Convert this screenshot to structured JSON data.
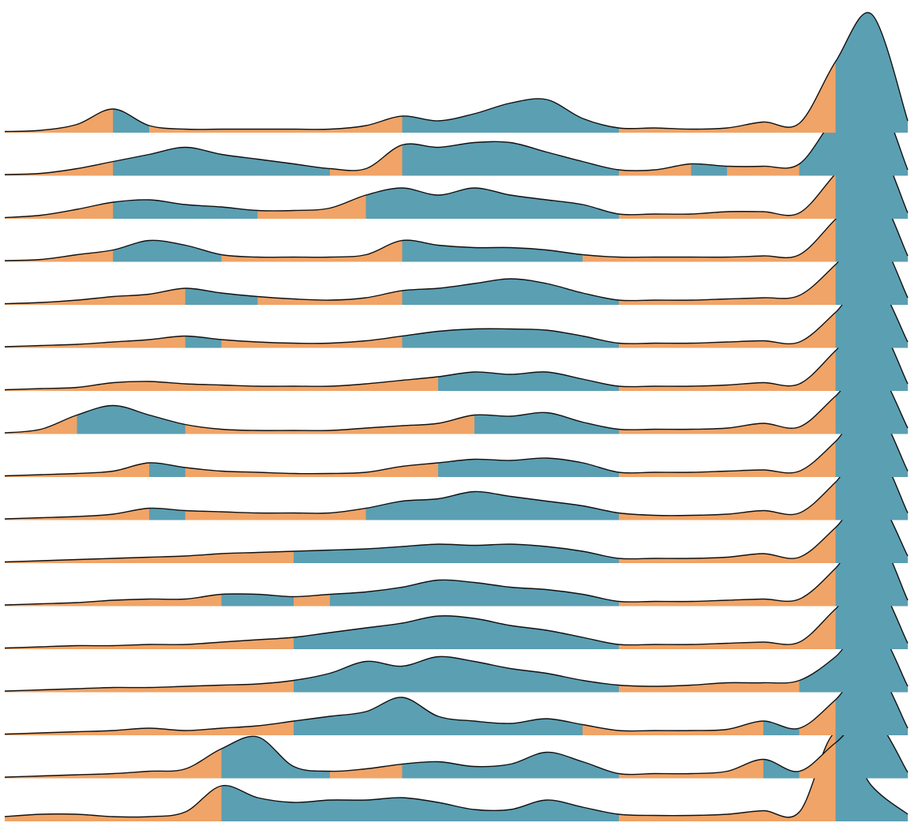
{
  "chart_data": {
    "type": "area",
    "subtype": "ridgeline",
    "title": "",
    "xlabel": "",
    "ylabel": "",
    "grid": false,
    "legend": "none",
    "colors": {
      "high": "#5b9fb3",
      "low": "#f0a467",
      "stroke": "#111111"
    },
    "x": [
      0,
      4,
      8,
      12,
      16,
      20,
      24,
      28,
      32,
      36,
      40,
      44,
      48,
      52,
      56,
      60,
      64,
      68,
      72,
      76,
      80,
      84,
      88,
      92,
      96,
      100
    ],
    "ylim": [
      0,
      10
    ],
    "threshold": 1,
    "series": [
      {
        "values": [
          0.1,
          0.2,
          0.7,
          2.0,
          0.6,
          0.3,
          0.3,
          0.3,
          0.3,
          0.3,
          0.6,
          1.4,
          1.0,
          1.6,
          2.5,
          2.8,
          1.2,
          0.4,
          0.4,
          0.3,
          0.4,
          0.9,
          0.8,
          6.0,
          10.0,
          1.0
        ]
      },
      {
        "values": [
          0.1,
          0.2,
          0.6,
          1.2,
          1.8,
          2.4,
          1.8,
          1.4,
          1.0,
          0.6,
          0.6,
          2.6,
          2.4,
          2.8,
          2.8,
          2.0,
          1.2,
          0.5,
          0.5,
          1.0,
          0.8,
          0.8,
          1.0,
          5.0,
          7.6,
          0.5
        ]
      },
      {
        "values": [
          0.1,
          0.3,
          0.8,
          1.4,
          1.6,
          1.2,
          1.0,
          0.7,
          0.7,
          0.9,
          2.0,
          2.6,
          2.0,
          2.6,
          2.0,
          1.6,
          1.2,
          0.4,
          0.4,
          0.4,
          0.6,
          0.6,
          0.5,
          3.8,
          7.0,
          0.5
        ]
      },
      {
        "values": [
          0.1,
          0.2,
          0.6,
          1.0,
          1.8,
          1.4,
          0.6,
          0.4,
          0.4,
          0.4,
          0.6,
          1.8,
          1.4,
          1.2,
          1.2,
          1.0,
          0.6,
          0.4,
          0.4,
          0.4,
          0.4,
          0.5,
          0.6,
          3.6,
          6.6,
          0.5
        ]
      },
      {
        "values": [
          0.1,
          0.2,
          0.4,
          0.7,
          0.9,
          1.4,
          1.0,
          0.7,
          0.5,
          0.4,
          0.6,
          1.2,
          1.4,
          1.8,
          2.2,
          1.8,
          1.0,
          0.4,
          0.4,
          0.4,
          0.5,
          0.6,
          0.8,
          3.4,
          6.5,
          0.6
        ]
      },
      {
        "values": [
          0.1,
          0.2,
          0.3,
          0.5,
          0.7,
          1.0,
          0.7,
          0.5,
          0.4,
          0.4,
          0.6,
          1.0,
          1.4,
          1.6,
          1.6,
          1.5,
          1.0,
          0.4,
          0.4,
          0.4,
          0.5,
          0.6,
          0.5,
          3.0,
          6.0,
          0.5
        ]
      },
      {
        "values": [
          0.1,
          0.2,
          0.3,
          0.7,
          0.8,
          0.6,
          0.5,
          0.4,
          0.4,
          0.4,
          0.6,
          0.9,
          1.2,
          1.6,
          1.4,
          1.6,
          1.0,
          0.4,
          0.4,
          0.4,
          0.5,
          0.7,
          0.6,
          3.4,
          6.4,
          0.6
        ]
      },
      {
        "values": [
          0.1,
          0.4,
          1.6,
          2.4,
          1.6,
          0.8,
          0.4,
          0.3,
          0.3,
          0.3,
          0.5,
          0.7,
          0.9,
          1.6,
          1.5,
          1.8,
          1.0,
          0.4,
          0.4,
          0.4,
          0.5,
          0.9,
          0.6,
          3.2,
          6.0,
          0.5
        ]
      },
      {
        "values": [
          0.1,
          0.2,
          0.3,
          0.5,
          1.2,
          0.8,
          0.5,
          0.4,
          0.3,
          0.3,
          0.4,
          0.9,
          1.2,
          1.5,
          1.4,
          1.6,
          1.2,
          0.4,
          0.4,
          0.4,
          0.5,
          0.6,
          0.5,
          3.0,
          6.2,
          0.5
        ]
      },
      {
        "values": [
          0.1,
          0.2,
          0.3,
          0.5,
          1.0,
          0.8,
          0.7,
          0.6,
          0.6,
          0.6,
          1.0,
          1.6,
          1.8,
          2.4,
          2.0,
          1.6,
          1.2,
          0.6,
          0.4,
          0.4,
          0.5,
          0.8,
          0.6,
          3.2,
          6.5,
          0.6
        ]
      },
      {
        "values": [
          0.1,
          0.2,
          0.3,
          0.4,
          0.5,
          0.6,
          0.8,
          0.9,
          1.0,
          1.1,
          1.2,
          1.4,
          1.6,
          1.5,
          1.6,
          1.4,
          1.0,
          0.4,
          0.4,
          0.4,
          0.5,
          0.8,
          0.5,
          3.0,
          6.0,
          0.6
        ]
      },
      {
        "values": [
          0.1,
          0.2,
          0.3,
          0.5,
          0.6,
          0.6,
          1.0,
          1.0,
          0.8,
          1.0,
          1.2,
          1.6,
          2.2,
          2.0,
          1.6,
          1.4,
          1.0,
          0.4,
          0.4,
          0.4,
          0.5,
          0.6,
          0.6,
          3.2,
          6.6,
          0.5
        ]
      },
      {
        "values": [
          0.1,
          0.2,
          0.3,
          0.3,
          0.4,
          0.4,
          0.6,
          0.8,
          1.0,
          1.4,
          1.8,
          2.2,
          2.8,
          2.6,
          2.0,
          1.6,
          1.0,
          0.4,
          0.4,
          0.4,
          0.5,
          0.6,
          0.6,
          3.4,
          6.2,
          0.5
        ]
      },
      {
        "values": [
          0.1,
          0.2,
          0.3,
          0.4,
          0.4,
          0.5,
          0.6,
          0.7,
          1.0,
          1.6,
          2.6,
          2.2,
          3.0,
          2.6,
          2.0,
          1.6,
          1.0,
          0.6,
          0.5,
          0.6,
          0.8,
          0.8,
          1.0,
          3.0,
          6.0,
          0.5
        ]
      },
      {
        "values": [
          0.1,
          0.2,
          0.3,
          0.4,
          0.6,
          0.4,
          0.6,
          0.8,
          1.2,
          1.6,
          2.0,
          3.2,
          1.6,
          1.2,
          1.0,
          1.4,
          0.9,
          0.4,
          0.4,
          0.4,
          0.5,
          1.2,
          0.6,
          3.0,
          6.0,
          0.6
        ]
      },
      {
        "values": [
          0.1,
          0.2,
          0.3,
          0.4,
          0.6,
          0.8,
          2.5,
          3.5,
          1.0,
          0.6,
          0.8,
          1.2,
          1.4,
          1.0,
          1.2,
          2.2,
          1.4,
          0.4,
          0.4,
          0.4,
          0.6,
          1.6,
          0.6,
          3.0,
          5.2,
          0.5
        ]
      },
      {
        "values": [
          0.4,
          0.6,
          0.6,
          0.4,
          0.4,
          0.8,
          3.0,
          2.0,
          1.6,
          1.8,
          1.8,
          2.0,
          1.6,
          1.0,
          1.0,
          1.8,
          1.2,
          0.6,
          0.5,
          0.5,
          0.6,
          0.9,
          0.8,
          7.5,
          3.0,
          0.6
        ]
      }
    ]
  }
}
